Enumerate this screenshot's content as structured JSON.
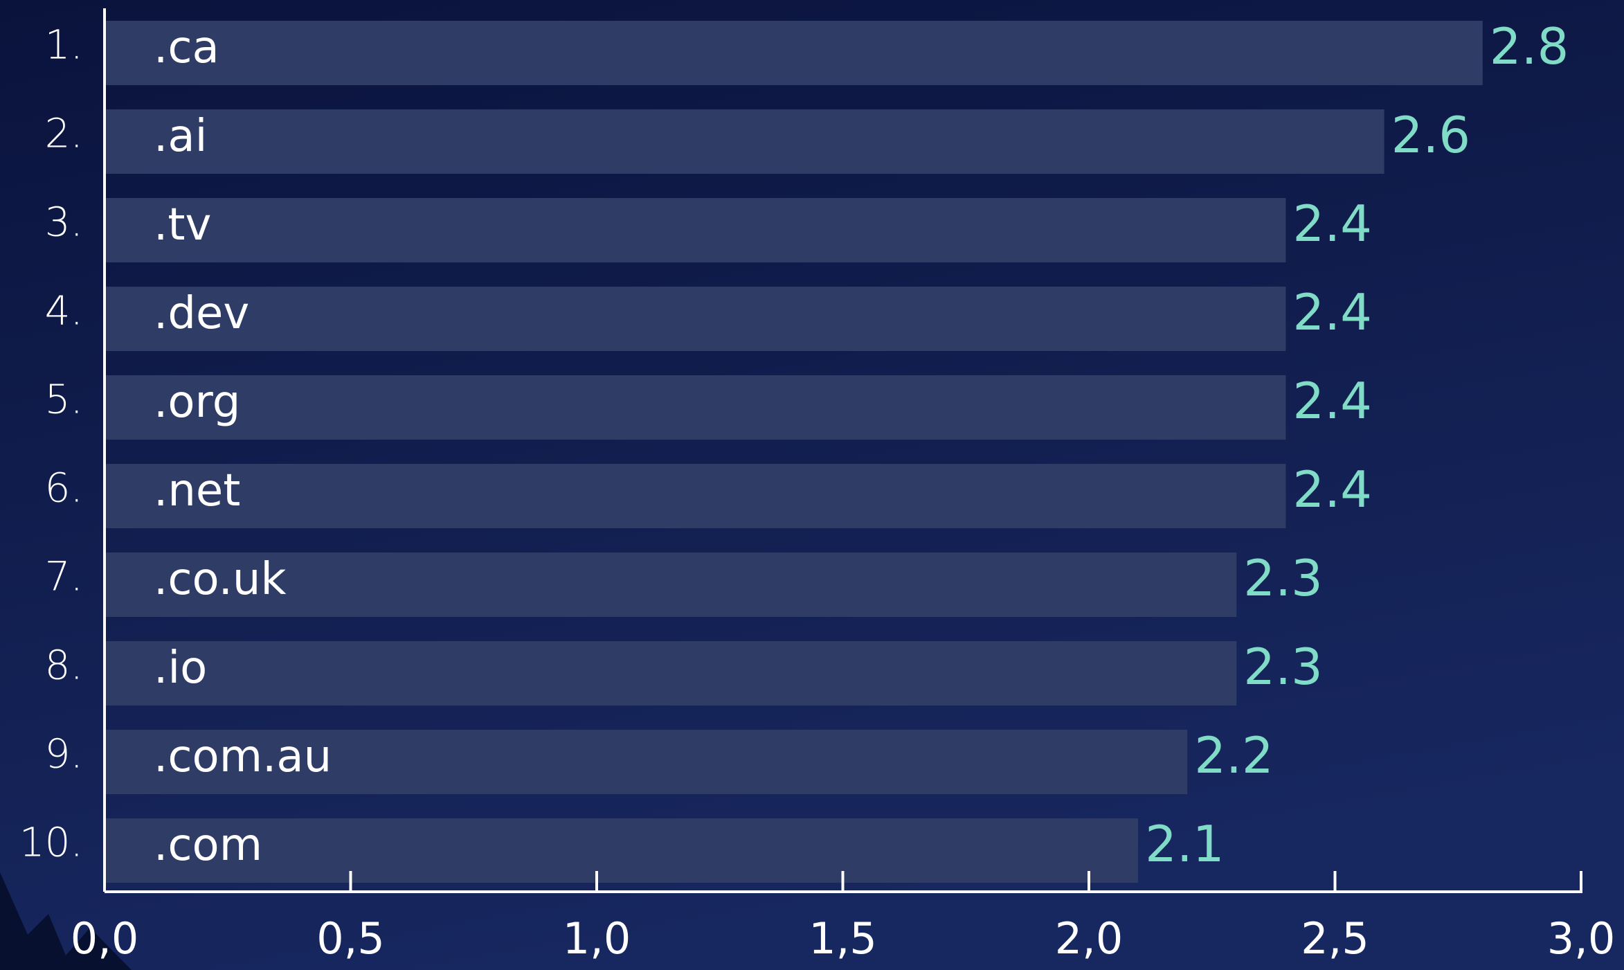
{
  "chart_data": {
    "type": "barh",
    "ranks": [
      "1.",
      "2.",
      "3.",
      "4.",
      "5.",
      "6.",
      "7.",
      "8.",
      "9.",
      "10."
    ],
    "categories": [
      ".ca",
      ".ai",
      ".tv",
      ".dev",
      ".org",
      ".net",
      ".co.uk",
      ".io",
      ".com.au",
      ".com"
    ],
    "values": [
      2.8,
      2.6,
      2.4,
      2.4,
      2.4,
      2.4,
      2.3,
      2.3,
      2.2,
      2.1
    ],
    "color": "#2e3c66",
    "value_label_color": "#80dcc6",
    "xlim": [
      0,
      3
    ],
    "xticks": [
      {
        "value": 0,
        "label": "0,0"
      },
      {
        "value": 0.5,
        "label": "0,5"
      },
      {
        "value": 1,
        "label": "1,0"
      },
      {
        "value": 1.5,
        "label": "1,5"
      },
      {
        "value": 2,
        "label": "2,0"
      },
      {
        "value": 2.5,
        "label": "2,5"
      },
      {
        "value": 3,
        "label": "3,0"
      }
    ]
  }
}
